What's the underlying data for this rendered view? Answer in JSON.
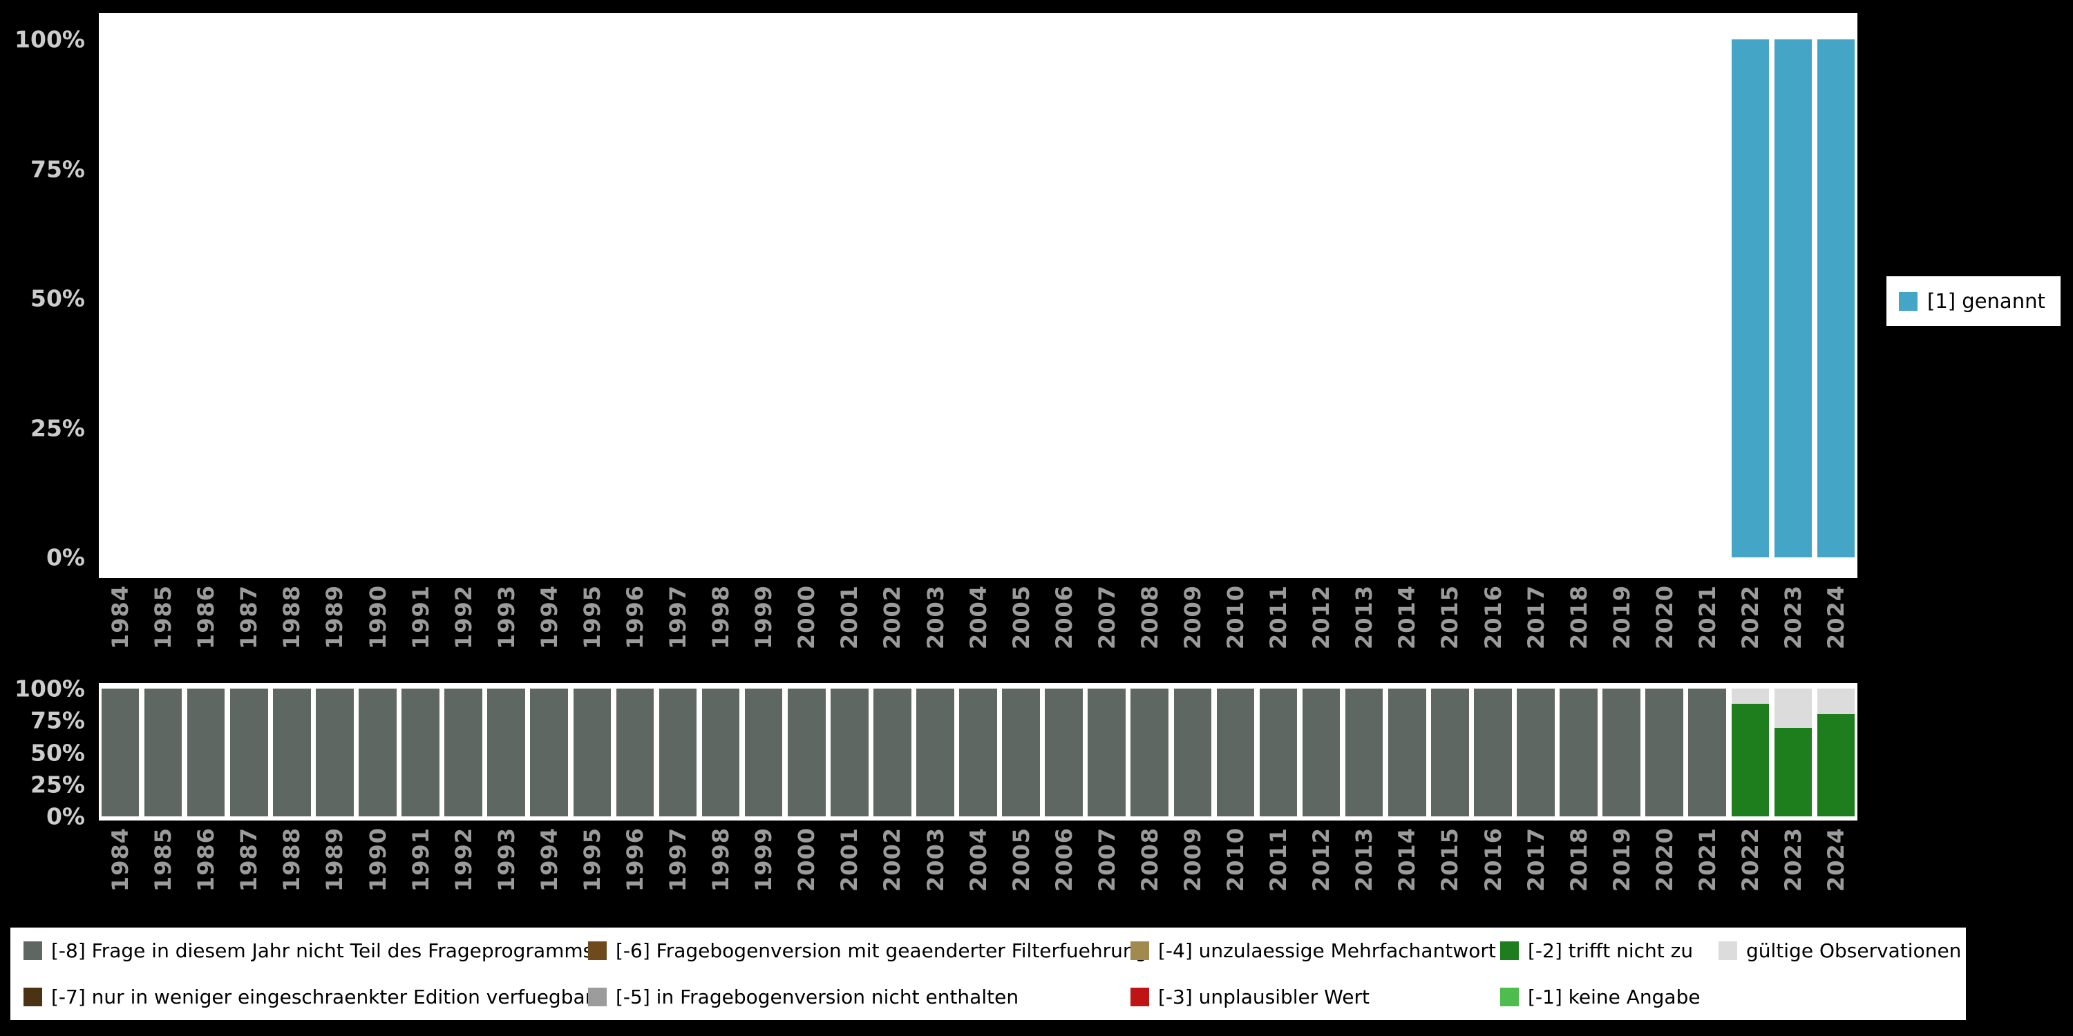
{
  "colors": {
    "background": "#000000",
    "plot": "#ffffff",
    "y_axis_text": "#cccccc",
    "x_axis_text": "#9b9b9b",
    "legend_text": "#000000",
    "genannt": "#45a5c7",
    "miss8": "#5f6762",
    "miss7": "#4a3212",
    "miss6": "#6f4a1c",
    "miss5": "#9c9c9c",
    "miss4": "#a08a50",
    "miss3": "#c01414",
    "miss2": "#1e7e1e",
    "miss1": "#4dbd4d",
    "valid": "#dcdcdc"
  },
  "y_ticks": [
    "100%",
    "75%",
    "50%",
    "25%",
    "0%"
  ],
  "years": [
    "1984",
    "1985",
    "1986",
    "1987",
    "1988",
    "1989",
    "1990",
    "1991",
    "1992",
    "1993",
    "1994",
    "1995",
    "1996",
    "1997",
    "1998",
    "1999",
    "2000",
    "2001",
    "2002",
    "2003",
    "2004",
    "2005",
    "2006",
    "2007",
    "2008",
    "2009",
    "2010",
    "2011",
    "2012",
    "2013",
    "2014",
    "2015",
    "2016",
    "2017",
    "2018",
    "2019",
    "2020",
    "2021",
    "2022",
    "2023",
    "2024"
  ],
  "top_legend": {
    "label": "[1] genannt",
    "color": "genannt"
  },
  "bottom_legend": {
    "items": [
      {
        "label": "[-8] Frage in diesem Jahr nicht Teil des Frageprogramms",
        "color": "miss8"
      },
      {
        "label": "[-7] nur in weniger eingeschraenkter Edition verfuegbar",
        "color": "miss7"
      },
      {
        "label": "[-6] Fragebogenversion mit geaenderter Filterfuehrung",
        "color": "miss6"
      },
      {
        "label": "[-5] in Fragebogenversion nicht enthalten",
        "color": "miss5"
      },
      {
        "label": "[-4] unzulaessige Mehrfachantwort",
        "color": "miss4"
      },
      {
        "label": "[-3] unplausibler Wert",
        "color": "miss3"
      },
      {
        "label": "[-2] trifft nicht zu",
        "color": "miss2"
      },
      {
        "label": "[-1] keine Angabe",
        "color": "miss1"
      },
      {
        "label": "gültige Observationen",
        "color": "valid"
      }
    ]
  },
  "chart_data": [
    {
      "type": "bar",
      "stacked": true,
      "value_unit": "percent",
      "title": "",
      "xlabel": "",
      "ylabel": "",
      "ylim": [
        0,
        100
      ],
      "y_tick_labels": [
        "0%",
        "25%",
        "50%",
        "75%",
        "100%"
      ],
      "x_tick_rotation_deg": 90,
      "grid": false,
      "legend_position": "right",
      "categories": [
        "1984",
        "1985",
        "1986",
        "1987",
        "1988",
        "1989",
        "1990",
        "1991",
        "1992",
        "1993",
        "1994",
        "1995",
        "1996",
        "1997",
        "1998",
        "1999",
        "2000",
        "2001",
        "2002",
        "2003",
        "2004",
        "2005",
        "2006",
        "2007",
        "2008",
        "2009",
        "2010",
        "2011",
        "2012",
        "2013",
        "2014",
        "2015",
        "2016",
        "2017",
        "2018",
        "2019",
        "2020",
        "2021",
        "2022",
        "2023",
        "2024"
      ],
      "series": [
        {
          "name": "[1] genannt",
          "color": "genannt",
          "values": [
            0,
            0,
            0,
            0,
            0,
            0,
            0,
            0,
            0,
            0,
            0,
            0,
            0,
            0,
            0,
            0,
            0,
            0,
            0,
            0,
            0,
            0,
            0,
            0,
            0,
            0,
            0,
            0,
            0,
            0,
            0,
            0,
            0,
            0,
            0,
            0,
            0,
            0,
            100,
            100,
            100
          ]
        }
      ]
    },
    {
      "type": "bar",
      "stacked": true,
      "value_unit": "percent",
      "title": "",
      "xlabel": "",
      "ylabel": "",
      "ylim": [
        0,
        100
      ],
      "y_tick_labels": [
        "0%",
        "25%",
        "50%",
        "75%",
        "100%"
      ],
      "x_tick_rotation_deg": 90,
      "grid": false,
      "legend_position": "bottom",
      "categories": [
        "1984",
        "1985",
        "1986",
        "1987",
        "1988",
        "1989",
        "1990",
        "1991",
        "1992",
        "1993",
        "1994",
        "1995",
        "1996",
        "1997",
        "1998",
        "1999",
        "2000",
        "2001",
        "2002",
        "2003",
        "2004",
        "2005",
        "2006",
        "2007",
        "2008",
        "2009",
        "2010",
        "2011",
        "2012",
        "2013",
        "2014",
        "2015",
        "2016",
        "2017",
        "2018",
        "2019",
        "2020",
        "2021",
        "2022",
        "2023",
        "2024"
      ],
      "series": [
        {
          "name": "[-8] Frage in diesem Jahr nicht Teil des Frageprogramms",
          "color": "miss8",
          "values": [
            100,
            100,
            100,
            100,
            100,
            100,
            100,
            100,
            100,
            100,
            100,
            100,
            100,
            100,
            100,
            100,
            100,
            100,
            100,
            100,
            100,
            100,
            100,
            100,
            100,
            100,
            100,
            100,
            100,
            100,
            100,
            100,
            100,
            100,
            100,
            100,
            100,
            100,
            0,
            0,
            0
          ]
        },
        {
          "name": "[-2] trifft nicht zu",
          "color": "miss2",
          "values": [
            0,
            0,
            0,
            0,
            0,
            0,
            0,
            0,
            0,
            0,
            0,
            0,
            0,
            0,
            0,
            0,
            0,
            0,
            0,
            0,
            0,
            0,
            0,
            0,
            0,
            0,
            0,
            0,
            0,
            0,
            0,
            0,
            0,
            0,
            0,
            0,
            0,
            0,
            88,
            69,
            80
          ]
        },
        {
          "name": "gültige Observationen",
          "color": "valid",
          "values": [
            0,
            0,
            0,
            0,
            0,
            0,
            0,
            0,
            0,
            0,
            0,
            0,
            0,
            0,
            0,
            0,
            0,
            0,
            0,
            0,
            0,
            0,
            0,
            0,
            0,
            0,
            0,
            0,
            0,
            0,
            0,
            0,
            0,
            0,
            0,
            0,
            0,
            0,
            12,
            31,
            20
          ]
        }
      ]
    }
  ]
}
